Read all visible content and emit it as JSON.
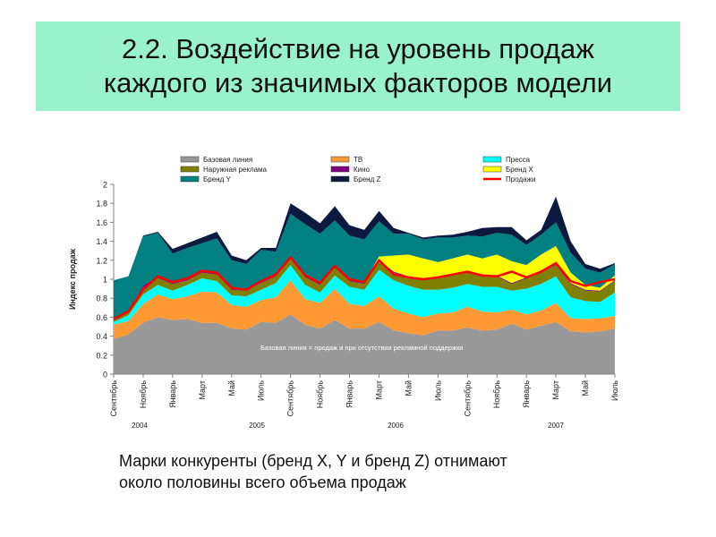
{
  "slide": {
    "title": "2.2. Воздействие на уровень продаж\nкаждого из значимых факторов модели",
    "caption": "Марки конкуренты (бренд X, Y и бренд Z) отнимают\nоколо  половины всего объема продаж"
  },
  "chart_data": {
    "type": "area",
    "stacked": true,
    "ylabel": "Индекс продаж",
    "ylim": [
      0,
      2
    ],
    "yticks": [
      "0",
      "0.2",
      "0.4",
      "0.6",
      "0.8",
      "1",
      "1.2",
      "1.4",
      "1.6",
      "1.8",
      "2"
    ],
    "x_month_labels": [
      "Сентябрь",
      "Ноябрь",
      "Январь",
      "Март",
      "Май",
      "Июль",
      "Сентябрь",
      "Ноябрь",
      "Январь",
      "Март",
      "Май",
      "Июль",
      "Сентябрь",
      "Ноябрь",
      "Январь",
      "Март",
      "Май",
      "Июль"
    ],
    "x_year_labels": [
      "2004",
      "2005",
      "2006",
      "2007"
    ],
    "annotation": "Базовая линия = продаж и при отсутствии рекламной поддержки",
    "legend_position": "top",
    "series": [
      {
        "name": "Базовая линия",
        "color": "#999999",
        "values": [
          0.37,
          0.42,
          0.54,
          0.6,
          0.57,
          0.58,
          0.54,
          0.54,
          0.48,
          0.47,
          0.55,
          0.54,
          0.63,
          0.52,
          0.48,
          0.57,
          0.48,
          0.48,
          0.55,
          0.46,
          0.43,
          0.41,
          0.46,
          0.46,
          0.49,
          0.46,
          0.47,
          0.53,
          0.47,
          0.51,
          0.55,
          0.45,
          0.44,
          0.45,
          0.48
        ]
      },
      {
        "name": "ТВ",
        "color": "#ff9933",
        "values": [
          0.15,
          0.14,
          0.2,
          0.24,
          0.22,
          0.24,
          0.33,
          0.32,
          0.25,
          0.24,
          0.23,
          0.27,
          0.36,
          0.27,
          0.27,
          0.33,
          0.26,
          0.24,
          0.27,
          0.23,
          0.21,
          0.19,
          0.18,
          0.19,
          0.22,
          0.2,
          0.18,
          0.15,
          0.16,
          0.16,
          0.2,
          0.14,
          0.14,
          0.14,
          0.13
        ]
      },
      {
        "name": "Пресса",
        "color": "#00ffff",
        "values": [
          0.03,
          0.06,
          0.1,
          0.1,
          0.09,
          0.12,
          0.14,
          0.12,
          0.1,
          0.11,
          0.11,
          0.15,
          0.16,
          0.15,
          0.11,
          0.14,
          0.18,
          0.17,
          0.28,
          0.3,
          0.29,
          0.29,
          0.25,
          0.26,
          0.24,
          0.26,
          0.27,
          0.2,
          0.27,
          0.28,
          0.28,
          0.22,
          0.19,
          0.17,
          0.25
        ]
      },
      {
        "name": "Наружная реклама",
        "color": "#808000",
        "values": [
          0.02,
          0.04,
          0.07,
          0.07,
          0.07,
          0.05,
          0.06,
          0.07,
          0.06,
          0.06,
          0.07,
          0.07,
          0.06,
          0.08,
          0.08,
          0.08,
          0.06,
          0.06,
          0.09,
          0.08,
          0.09,
          0.1,
          0.12,
          0.13,
          0.13,
          0.11,
          0.11,
          0.07,
          0.11,
          0.12,
          0.12,
          0.14,
          0.11,
          0.11,
          0.12
        ]
      },
      {
        "name": "Кино",
        "color": "#800080",
        "values": [
          0.01,
          0.01,
          0.02,
          0.02,
          0.02,
          0.02,
          0.02,
          0.02,
          0.02,
          0.02,
          0.02,
          0.02,
          0.02,
          0.02,
          0.02,
          0.02,
          0.02,
          0.02,
          0.01,
          0.01,
          0.01,
          0.01,
          0.01,
          0.01,
          0.01,
          0.01,
          0.01,
          0.01,
          0.01,
          0.01,
          0.01,
          0.01,
          0.01,
          0.01,
          0.01
        ]
      },
      {
        "name": "Бренд X",
        "color": "#ffff00",
        "values": [
          0,
          0,
          0,
          0,
          0,
          0,
          0,
          0,
          0,
          0,
          0,
          0,
          0,
          0,
          0,
          0,
          0,
          0,
          0.04,
          0.17,
          0.23,
          0.22,
          0.16,
          0.17,
          0.17,
          0.18,
          0.22,
          0.23,
          0.13,
          0.18,
          0.19,
          0.11,
          0.05,
          0.03,
          0.05
        ]
      },
      {
        "name": "Бренд Y",
        "color": "#008080",
        "values": [
          0.41,
          0.36,
          0.52,
          0.46,
          0.3,
          0.32,
          0.29,
          0.36,
          0.29,
          0.26,
          0.33,
          0.24,
          0.46,
          0.54,
          0.52,
          0.48,
          0.46,
          0.45,
          0.37,
          0.23,
          0.22,
          0.2,
          0.26,
          0.22,
          0.2,
          0.23,
          0.23,
          0.28,
          0.21,
          0.21,
          0.25,
          0.21,
          0.17,
          0.16,
          0.12
        ]
      },
      {
        "name": "Бренд Z",
        "color": "#0d1a40",
        "values": [
          0,
          0,
          0.01,
          0.01,
          0.05,
          0.05,
          0.06,
          0.07,
          0.05,
          0.04,
          0.02,
          0.04,
          0.11,
          0.12,
          0.11,
          0.15,
          0.11,
          0.1,
          0.11,
          0.06,
          0.01,
          0.02,
          0.02,
          0.03,
          0.04,
          0.09,
          0.06,
          0.08,
          0.05,
          0.05,
          0.27,
          0.12,
          0.05,
          0.04,
          0.01
        ]
      },
      {
        "name": "Продажи",
        "color": "#ff0000",
        "type": "line",
        "values": [
          0.58,
          0.66,
          0.89,
          1.03,
          0.97,
          1.01,
          1.09,
          1.07,
          0.91,
          0.89,
          0.98,
          1.05,
          1.23,
          1.04,
          0.96,
          1.14,
          1.0,
          0.97,
          1.2,
          1.05,
          1.02,
          1.0,
          1.02,
          1.05,
          1.08,
          1.04,
          1.03,
          1.08,
          1.02,
          1.08,
          1.17,
          0.98,
          0.93,
          0.97,
          1.0
        ]
      }
    ]
  }
}
